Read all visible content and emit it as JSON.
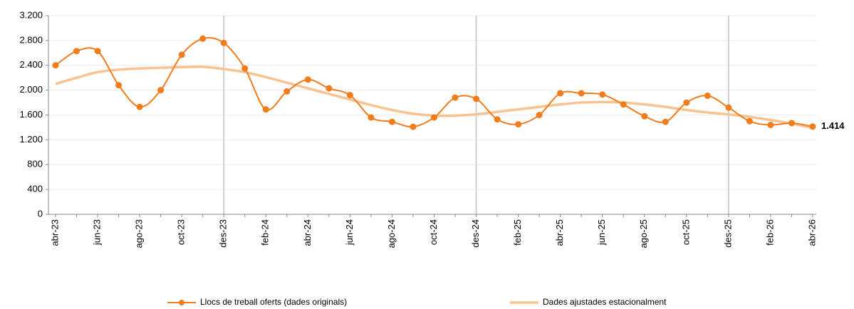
{
  "chart_data": {
    "type": "line",
    "categories": [
      "abr-23",
      null,
      "jun-23",
      null,
      "ago-23",
      null,
      "oct-23",
      null,
      "des-23",
      null,
      "feb-24",
      null,
      "abr-24",
      null,
      "jun-24",
      null,
      "ago-24",
      null,
      "oct-24",
      null,
      "des-24",
      null,
      "feb-25",
      null,
      "abr-25",
      null,
      "jun-25",
      null,
      "ago-25",
      null,
      "oct-25",
      null,
      "des-25",
      null,
      "feb-26",
      null,
      "abr-26"
    ],
    "series": [
      {
        "name": "Llocs de treball oferts (dades originals)",
        "color": "#f07c1c",
        "markers": true,
        "values": [
          2400,
          2630,
          2630,
          2080,
          1730,
          2000,
          2570,
          2830,
          2760,
          2350,
          1690,
          1980,
          2170,
          2030,
          1920,
          1560,
          1490,
          1410,
          1560,
          1880,
          1860,
          1530,
          1450,
          1600,
          1950,
          1950,
          1930,
          1770,
          1580,
          1490,
          1800,
          1910,
          1720,
          1500,
          1440,
          1470,
          1414
        ],
        "value_labels": [
          null,
          null,
          null,
          null,
          null,
          null,
          null,
          null,
          null,
          null,
          null,
          null,
          null,
          null,
          null,
          null,
          null,
          null,
          null,
          null,
          null,
          null,
          null,
          null,
          null,
          null,
          null,
          null,
          null,
          null,
          null,
          null,
          null,
          null,
          null,
          null,
          "1.414"
        ]
      },
      {
        "name": "Dades ajustades estacionalment",
        "color": "#f8c291",
        "markers": false,
        "values": [
          2100,
          2200,
          2290,
          2330,
          2350,
          2360,
          2370,
          2375,
          2340,
          2290,
          2210,
          2120,
          2030,
          1940,
          1850,
          1760,
          1680,
          1620,
          1590,
          1590,
          1610,
          1650,
          1690,
          1730,
          1770,
          1800,
          1810,
          1800,
          1770,
          1730,
          1680,
          1640,
          1610,
          1570,
          1520,
          1460,
          1390
        ]
      }
    ],
    "ylim": [
      0,
      3200
    ],
    "yticks": [
      0,
      400,
      800,
      {
        "value": 1200,
        "label": "1.200"
      },
      {
        "value": 1600,
        "label": "1.600"
      },
      {
        "value": 2000,
        "label": "2.000"
      },
      {
        "value": 2400,
        "label": "2.400"
      },
      {
        "value": 2800,
        "label": "2.800"
      },
      {
        "value": 3200,
        "label": "3.200"
      }
    ],
    "grid": true,
    "separators": [
      8,
      20,
      32
    ],
    "legend": "bottom"
  }
}
